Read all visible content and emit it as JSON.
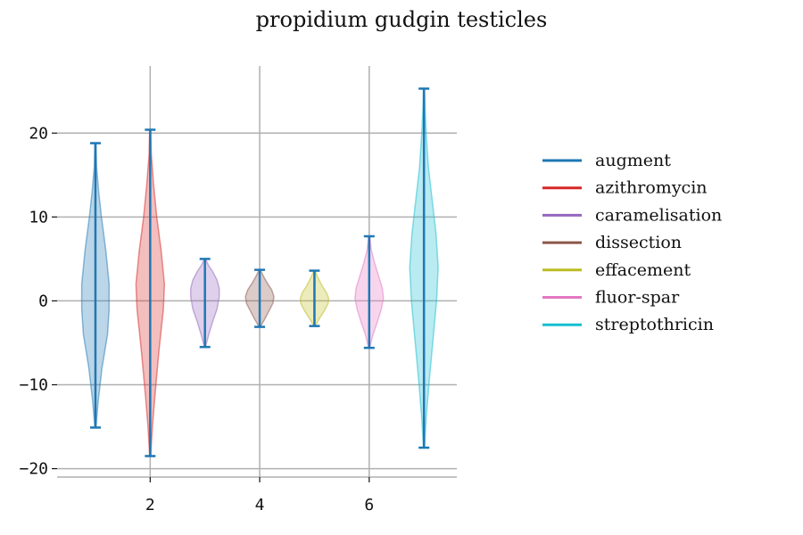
{
  "chart_data": {
    "type": "violin",
    "title": "propidium gudgin testicles",
    "xlabel": "",
    "ylabel": "",
    "xlim": [
      0.3,
      7.6
    ],
    "ylim": [
      -21,
      28
    ],
    "xticks": [
      2,
      4,
      6
    ],
    "yticks": [
      -20,
      -10,
      0,
      10,
      20
    ],
    "grid": true,
    "legend_position": "right",
    "series": [
      {
        "name": "augment",
        "x": 1,
        "color": "#1f77b4",
        "min": -15.1,
        "max": 18.8,
        "width": 0.25,
        "density": [
          [
            -15.1,
            0.01
          ],
          [
            -12,
            0.05
          ],
          [
            -8,
            0.12
          ],
          [
            -4,
            0.22
          ],
          [
            -1,
            0.25
          ],
          [
            2,
            0.25
          ],
          [
            6,
            0.19
          ],
          [
            10,
            0.11
          ],
          [
            13,
            0.06
          ],
          [
            16,
            0.02
          ],
          [
            18.8,
            0.01
          ]
        ]
      },
      {
        "name": "azithromycin",
        "x": 2,
        "color": "#d62728",
        "min": -18.5,
        "max": 20.4,
        "width": 0.26,
        "density": [
          [
            -18.5,
            0.01
          ],
          [
            -15,
            0.04
          ],
          [
            -11,
            0.09
          ],
          [
            -6,
            0.16
          ],
          [
            -1,
            0.24
          ],
          [
            2,
            0.26
          ],
          [
            6,
            0.2
          ],
          [
            10,
            0.12
          ],
          [
            14,
            0.06
          ],
          [
            17.5,
            0.02
          ],
          [
            20.4,
            0.01
          ]
        ]
      },
      {
        "name": "caramelisation",
        "x": 3,
        "color": "#9467bd",
        "min": -5.5,
        "max": 5.0,
        "width": 0.26,
        "density": [
          [
            -5.5,
            0.01
          ],
          [
            -4,
            0.07
          ],
          [
            -2.5,
            0.14
          ],
          [
            -1,
            0.22
          ],
          [
            0.5,
            0.26
          ],
          [
            1.5,
            0.26
          ],
          [
            2.5,
            0.22
          ],
          [
            3.5,
            0.14
          ],
          [
            4.3,
            0.06
          ],
          [
            5.0,
            0.01
          ]
        ]
      },
      {
        "name": "dissection",
        "x": 4,
        "color": "#8c564b",
        "min": -3.1,
        "max": 3.7,
        "width": 0.26,
        "density": [
          [
            -3.1,
            0.01
          ],
          [
            -2.2,
            0.09
          ],
          [
            -1.2,
            0.17
          ],
          [
            -0.3,
            0.24
          ],
          [
            0.5,
            0.26
          ],
          [
            1.3,
            0.22
          ],
          [
            2.1,
            0.14
          ],
          [
            2.9,
            0.07
          ],
          [
            3.7,
            0.01
          ]
        ]
      },
      {
        "name": "effacement",
        "x": 5,
        "color": "#bcbd22",
        "min": -3.0,
        "max": 3.6,
        "width": 0.26,
        "density": [
          [
            -3.0,
            0.01
          ],
          [
            -2.1,
            0.09
          ],
          [
            -1.2,
            0.18
          ],
          [
            -0.3,
            0.25
          ],
          [
            0.3,
            0.26
          ],
          [
            1.0,
            0.22
          ],
          [
            1.8,
            0.14
          ],
          [
            2.7,
            0.07
          ],
          [
            3.6,
            0.01
          ]
        ]
      },
      {
        "name": "fluor-spar",
        "x": 6,
        "color": "#e377c2",
        "min": -5.6,
        "max": 7.7,
        "width": 0.26,
        "density": [
          [
            -5.6,
            0.01
          ],
          [
            -4,
            0.07
          ],
          [
            -2.5,
            0.15
          ],
          [
            -1,
            0.22
          ],
          [
            0.3,
            0.26
          ],
          [
            1.5,
            0.24
          ],
          [
            3,
            0.17
          ],
          [
            4.5,
            0.1
          ],
          [
            6,
            0.04
          ],
          [
            7.7,
            0.01
          ]
        ]
      },
      {
        "name": "streptothricin",
        "x": 7,
        "color": "#17becf",
        "min": -17.5,
        "max": 25.3,
        "width": 0.26,
        "density": [
          [
            -17.5,
            0.01
          ],
          [
            -14,
            0.04
          ],
          [
            -10,
            0.09
          ],
          [
            -5,
            0.16
          ],
          [
            0,
            0.23
          ],
          [
            4,
            0.26
          ],
          [
            8,
            0.22
          ],
          [
            12,
            0.15
          ],
          [
            16,
            0.08
          ],
          [
            20,
            0.04
          ],
          [
            23,
            0.02
          ],
          [
            25.3,
            0.01
          ]
        ]
      }
    ],
    "stat_color": "#1f77b4"
  }
}
